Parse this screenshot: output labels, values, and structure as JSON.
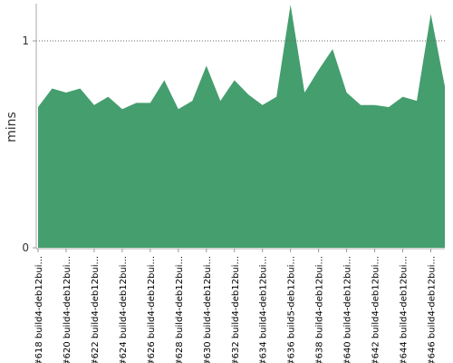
{
  "chart_data": {
    "type": "area",
    "ylabel": "mins",
    "categories": [
      "#618 build4-deb12bui...",
      null,
      "#620 build4-deb12bui...",
      null,
      "#622 build4-deb12bui...",
      null,
      "#624 build4-deb12bui...",
      null,
      "#626 build4-deb12bui...",
      null,
      "#628 build4-deb12bui...",
      null,
      "#630 build4-deb12bui...",
      null,
      "#632 build4-deb12bui...",
      null,
      "#634 build4-deb12bui...",
      null,
      "#636 build5-deb12bui...",
      null,
      "#638 build4-deb12bui...",
      null,
      "#640 build4-deb12bui...",
      null,
      "#642 build4-deb12bui...",
      null,
      "#644 build4-deb12bui...",
      null,
      "#646 build4-deb12bui...",
      null
    ],
    "series": [
      {
        "color": "#459e6e",
        "values": [
          0.68,
          0.77,
          0.75,
          0.77,
          0.69,
          0.73,
          0.67,
          0.7,
          0.7,
          0.81,
          0.67,
          0.71,
          0.88,
          0.71,
          0.81,
          0.74,
          0.69,
          0.73,
          1.175,
          0.75,
          0.86,
          0.96,
          0.75,
          0.69,
          0.69,
          0.68,
          0.73,
          0.71,
          1.13,
          0.78
        ]
      }
    ],
    "ylim": [
      0,
      1.18
    ],
    "yticks": [
      0,
      1
    ],
    "grid": true
  }
}
